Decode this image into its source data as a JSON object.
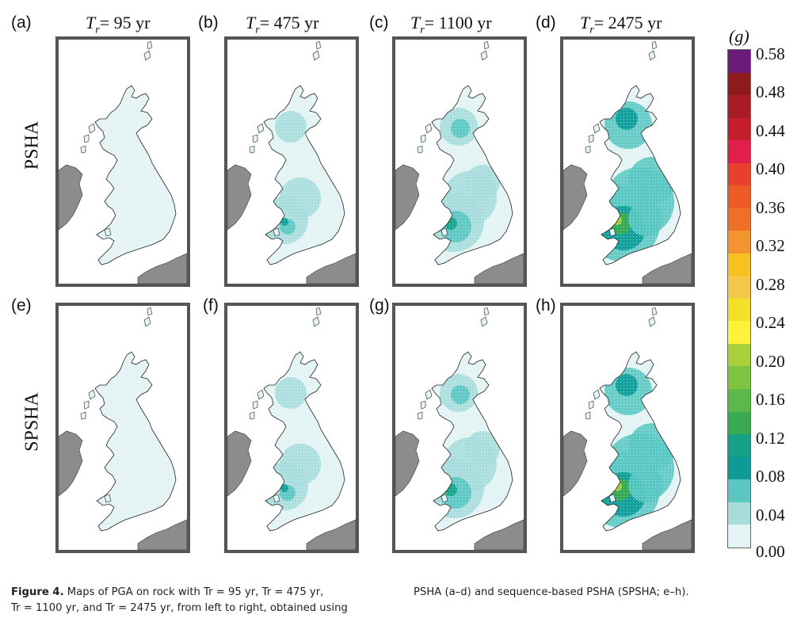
{
  "columns": [
    {
      "letter_top": "(a)",
      "letter_bottom": "(e)",
      "title_prefix": "T",
      "title_sub": "r",
      "title_suffix": "= 95 yr"
    },
    {
      "letter_top": "(b)",
      "letter_bottom": "(f)",
      "title_prefix": "T",
      "title_sub": "r",
      "title_suffix": "= 475 yr"
    },
    {
      "letter_top": "(c)",
      "letter_bottom": "(g)",
      "title_prefix": "T",
      "title_sub": "r",
      "title_suffix": "= 1100 yr"
    },
    {
      "letter_top": "(d)",
      "letter_bottom": "(h)",
      "title_prefix": "T",
      "title_sub": "r",
      "title_suffix": "= 2475 yr"
    }
  ],
  "rows": [
    {
      "label": "PSHA"
    },
    {
      "label": "SPSHA"
    }
  ],
  "colorbar": {
    "unit": "(g)",
    "ticks": [
      "0.58",
      "0.48",
      "0.44",
      "0.40",
      "0.36",
      "0.32",
      "0.28",
      "0.24",
      "0.20",
      "0.16",
      "0.12",
      "0.08",
      "0.04",
      "0.00"
    ],
    "colors": [
      "#6a1b7a",
      "#8e1a1a",
      "#a81c24",
      "#c41e2c",
      "#e0204a",
      "#e8402c",
      "#ec5a28",
      "#ef7028",
      "#f29430",
      "#f7c21e",
      "#f6c84a",
      "#f4e024",
      "#fff23a",
      "#a8d03a",
      "#7ec43e",
      "#5cb848",
      "#3aaa52",
      "#17a088",
      "#0e9a96",
      "#5cc6c2",
      "#a8dcdc",
      "#e4f4f4"
    ]
  },
  "caption": {
    "figure_label": "Figure 4.",
    "line1_a": "Maps of PGA on rock with T",
    "line1_b": "r",
    "line1_text": "Maps of  PGA  on  rock  with  Tr = 95 yr,  Tr = 475 yr,",
    "line1_right": "PSHA (a–d) and sequence-based PSHA (SPSHA; e–h).",
    "line2": "Tr = 1100 yr, and Tr = 2475 yr, from left to right, obtained using"
  },
  "colors": {
    "sea": "#ffffff",
    "land_base": "#e4f4f4",
    "neighbour_land": "#8c8c8c",
    "frame": "#555555"
  }
}
